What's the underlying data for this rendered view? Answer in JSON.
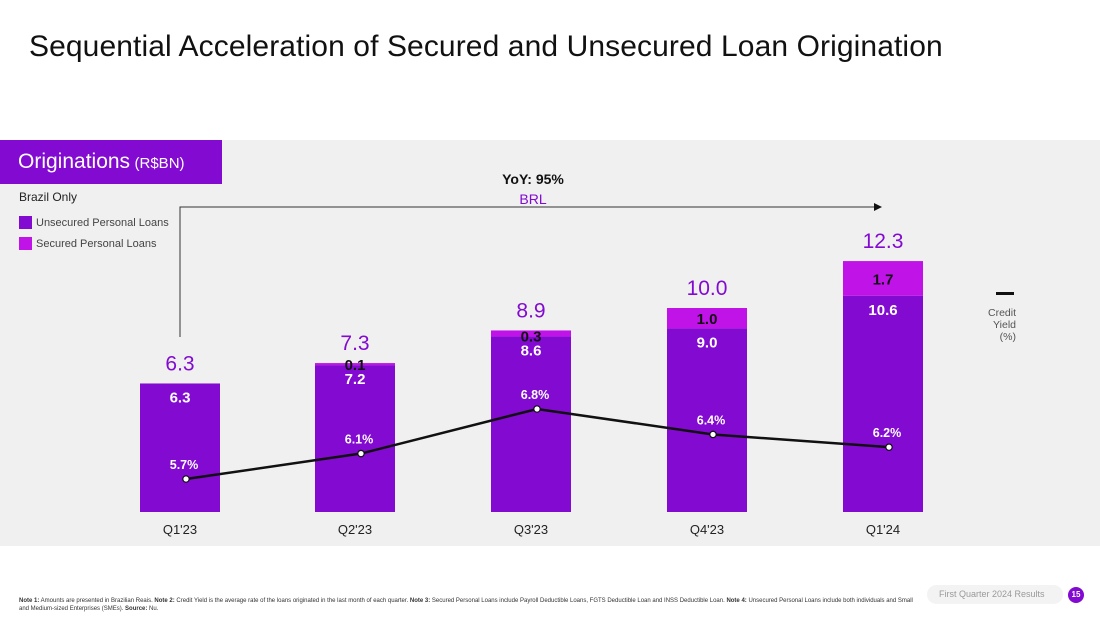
{
  "slide": {
    "title": "Sequential Acceleration of Secured and Unsecured Loan Origination",
    "section_label": "Originations",
    "section_unit": "(R$BN)",
    "scope": "Brazil Only",
    "legend": [
      {
        "label": "Unsecured Personal Loans",
        "color": "#820ad1"
      },
      {
        "label": "Secured Personal Loans",
        "color": "#c013e8"
      }
    ],
    "credit_legend": [
      "Credit",
      "Yield",
      "(%)"
    ],
    "growth_label": "YoY: 95%",
    "growth_sublabel": "BRL",
    "footnote": [
      {
        "b": "Note 1:",
        "t": " Amounts are presented in Brazilian Reais. "
      },
      {
        "b": "Note 2:",
        "t": " Credit Yield is the average rate of the loans originated in the last month of each quarter. "
      },
      {
        "b": "Note 3:",
        "t": " Secured Personal Loans include Payroll Deductible Loans, FGTS Deductible Loan and INSS Deductible Loan. "
      },
      {
        "b": "Note 4:",
        "t": " Unsecured Personal Loans include both individuals and Small and Medium-sized Enterprises (SMEs). "
      },
      {
        "b": "Source:",
        "t": " Nu."
      }
    ],
    "footer_label": "First Quarter 2024 Results",
    "page_number": "15"
  },
  "chart_data": {
    "type": "bar",
    "stacked": true,
    "categories": [
      "Q1'23",
      "Q2'23",
      "Q3'23",
      "Q4'23",
      "Q1'24"
    ],
    "series": [
      {
        "name": "Unsecured Personal Loans",
        "values": [
          6.3,
          7.2,
          8.6,
          9.0,
          10.6
        ],
        "labels": [
          "6.3",
          "7.2",
          "8.6",
          "9.0",
          "10.6"
        ],
        "color": "#820ad1"
      },
      {
        "name": "Secured Personal Loans",
        "values": [
          0,
          0.1,
          0.3,
          1.0,
          1.7
        ],
        "labels": [
          "",
          "0.1",
          "0.3",
          "1.0",
          "1.7"
        ],
        "color": "#c013e8"
      }
    ],
    "totals": [
      6.3,
      7.3,
      8.9,
      10.0,
      12.3
    ],
    "total_labels": [
      "6.3",
      "7.3",
      "8.9",
      "10.0",
      "12.3"
    ],
    "line_series": {
      "name": "Credit Yield (%)",
      "values": [
        5.7,
        6.1,
        6.8,
        6.4,
        6.2
      ],
      "labels": [
        "5.7%",
        "6.1%",
        "6.8%",
        "6.4%",
        "6.2%"
      ],
      "color": "#111111"
    },
    "ylim": [
      0,
      12.3
    ],
    "yoy_growth": "YoY: 95%",
    "grid": false,
    "legend_position": "top-left"
  }
}
